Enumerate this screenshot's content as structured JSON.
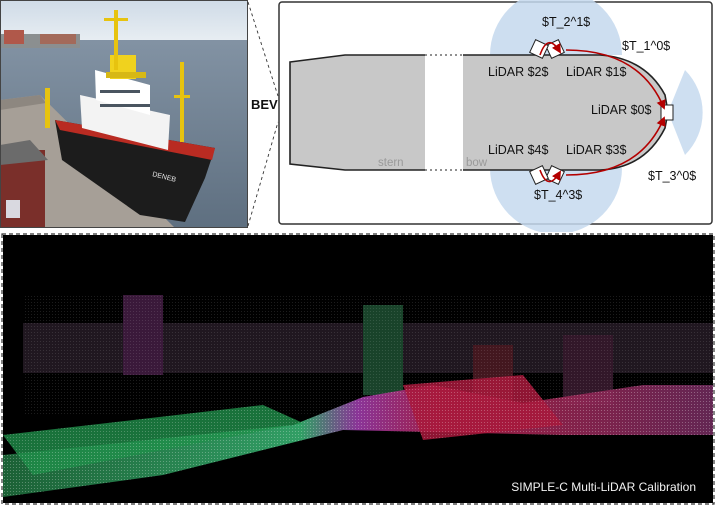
{
  "bev": {
    "label": "BEV"
  },
  "diagram": {
    "stern": "stern",
    "bow": "bow",
    "lidars": [
      "LiDAR $0$",
      "LiDAR $1$",
      "LiDAR $2$",
      "LiDAR $3$",
      "LiDAR $4$"
    ],
    "transforms": [
      "$T_2^1$",
      "$T_1^0$",
      "$T_3^0$",
      "$T_4^3$"
    ],
    "colors": {
      "hull": "#c8c8c8",
      "fov": "#c5d9ee",
      "arrow": "#b40000"
    }
  },
  "photo": {
    "ship_name": "DENEB"
  },
  "pointcloud": {
    "caption": "SIMPLE-C Multi-LiDAR Calibration"
  }
}
